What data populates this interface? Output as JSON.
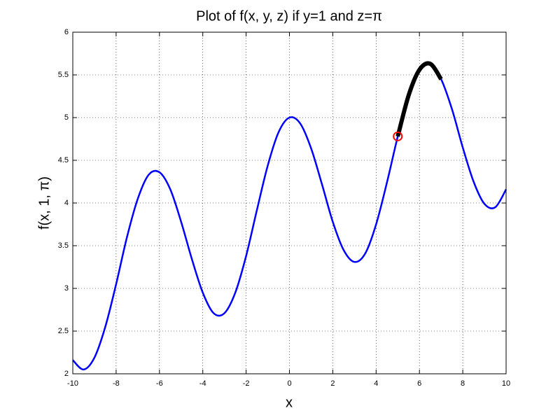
{
  "chart_data": {
    "type": "line",
    "title": "Plot of f(x, y, z) if y=1 and z=π",
    "x_label": "x",
    "y_label": "f(x, 1, π)",
    "xlim": [
      -10,
      10
    ],
    "xticks": [
      -10,
      -8,
      -6,
      -4,
      -2,
      0,
      2,
      4,
      6,
      8,
      10
    ],
    "ylim": [
      2,
      6
    ],
    "yticks": [
      2,
      2.5,
      3,
      3.5,
      4,
      4.5,
      5,
      5.5,
      6
    ],
    "grid": true,
    "series": [
      {
        "color": "#0000ff",
        "line_width": 2.5,
        "x": [
          -10,
          -9.5,
          -9,
          -8.5,
          -8,
          -7.5,
          -7,
          -6.5,
          -6,
          -5.5,
          -5,
          -4.5,
          -4,
          -3.5,
          -3,
          -2.5,
          -2,
          -1.5,
          -1,
          -0.5,
          0,
          0.5,
          1,
          1.5,
          2,
          2.5,
          3,
          3.5,
          4,
          4.5,
          5,
          5.5,
          6,
          6.5,
          7,
          7.5,
          8,
          8.5,
          9,
          9.5,
          10
        ],
        "values": [
          2.16,
          2.05,
          2.19,
          2.55,
          3.05,
          3.6,
          4.05,
          4.33,
          4.36,
          4.16,
          3.78,
          3.34,
          2.95,
          2.71,
          2.71,
          2.95,
          3.38,
          3.92,
          4.44,
          4.83,
          5.0,
          4.93,
          4.64,
          4.22,
          3.78,
          3.45,
          3.31,
          3.41,
          3.75,
          4.24,
          4.78,
          5.26,
          5.56,
          5.63,
          5.45,
          5.1,
          4.65,
          4.25,
          3.99,
          3.95,
          4.16
        ]
      },
      {
        "color": "#000000",
        "line_width": 6,
        "x": [
          5,
          5.5,
          6,
          6.5,
          7
        ],
        "values": [
          4.78,
          5.26,
          5.56,
          5.63,
          5.45
        ]
      },
      {
        "color": "#ff0000",
        "marker": "o",
        "x": [
          5
        ],
        "values": [
          4.78
        ]
      }
    ]
  }
}
